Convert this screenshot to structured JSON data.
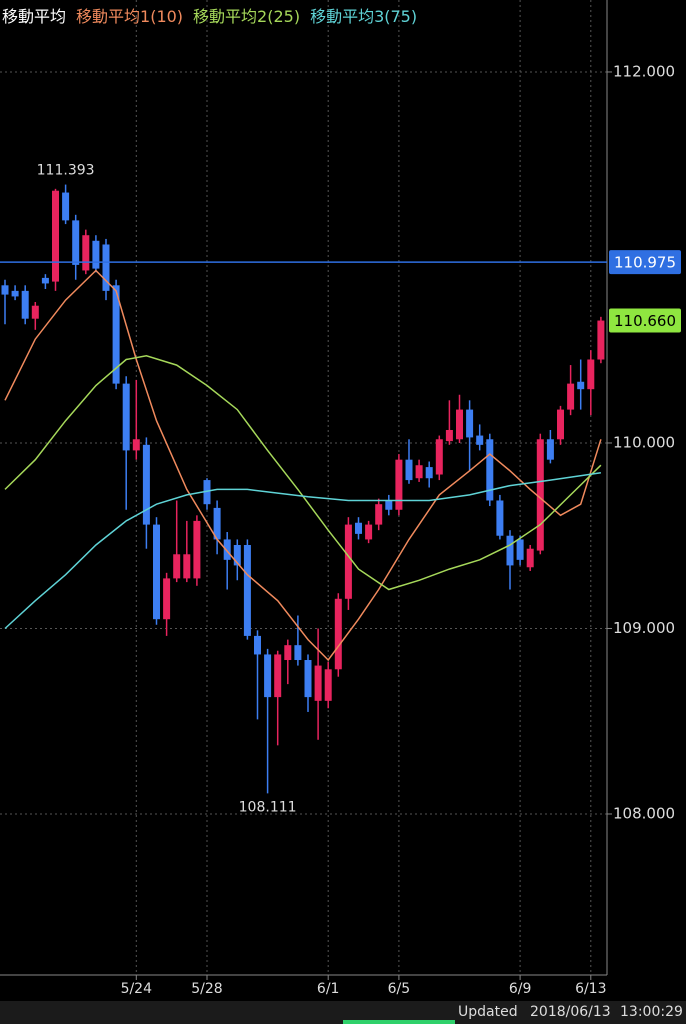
{
  "chart_data": {
    "type": "candlestick",
    "title": "移動平均",
    "categories": [
      null,
      null,
      null,
      null,
      null,
      null,
      null,
      null,
      null,
      null,
      null,
      null,
      null,
      "5/24",
      null,
      null,
      null,
      null,
      null,
      null,
      "5/28",
      null,
      null,
      null,
      null,
      null,
      null,
      null,
      null,
      null,
      null,
      null,
      "6/1",
      null,
      null,
      null,
      null,
      null,
      null,
      "6/5",
      null,
      null,
      null,
      null,
      null,
      null,
      null,
      null,
      null,
      null,
      null,
      "6/9",
      null,
      null,
      null,
      null,
      null,
      null,
      "6/13",
      null
    ],
    "open": [
      110.85,
      110.82,
      110.82,
      110.67,
      110.89,
      110.87,
      111.35,
      111.2,
      110.93,
      111.09,
      111.07,
      110.85,
      110.32,
      109.96,
      109.99,
      109.56,
      109.05,
      109.27,
      109.27,
      109.27,
      109.8,
      109.65,
      109.48,
      109.45,
      109.45,
      108.96,
      108.86,
      108.63,
      108.83,
      108.91,
      108.83,
      108.61,
      108.61,
      108.78,
      109.16,
      109.57,
      109.48,
      109.56,
      109.69,
      109.64,
      109.91,
      109.81,
      109.87,
      109.83,
      110.01,
      110.02,
      110.18,
      110.04,
      110.02,
      109.69,
      109.5,
      109.48,
      109.33,
      109.42,
      110.02,
      110.02,
      110.18,
      110.33,
      110.29,
      110.45
    ],
    "high": [
      110.88,
      110.85,
      110.85,
      110.76,
      110.91,
      111.37,
      111.393,
      111.23,
      111.15,
      111.12,
      111.1,
      110.88,
      110.36,
      110.34,
      110.03,
      109.6,
      109.3,
      109.69,
      109.58,
      109.61,
      109.81,
      109.69,
      109.52,
      109.48,
      109.48,
      108.99,
      108.89,
      108.88,
      108.94,
      109.07,
      108.86,
      109.0,
      108.82,
      109.19,
      109.6,
      109.6,
      109.58,
      109.7,
      109.72,
      109.94,
      110.02,
      109.91,
      109.9,
      110.04,
      110.23,
      110.26,
      110.23,
      110.1,
      110.05,
      109.72,
      109.53,
      109.5,
      109.45,
      110.05,
      110.07,
      110.2,
      110.42,
      110.45,
      110.5,
      110.68
    ],
    "low": [
      110.64,
      110.77,
      110.64,
      110.61,
      110.83,
      110.82,
      111.18,
      110.88,
      110.91,
      110.92,
      110.77,
      110.29,
      109.64,
      109.91,
      109.43,
      109.02,
      108.96,
      109.25,
      109.25,
      109.23,
      109.64,
      109.4,
      109.21,
      109.26,
      108.94,
      108.51,
      108.111,
      108.37,
      108.7,
      108.8,
      108.55,
      108.4,
      108.57,
      108.74,
      109.1,
      109.48,
      109.46,
      109.53,
      109.61,
      109.61,
      109.78,
      109.79,
      109.76,
      109.8,
      109.99,
      110.0,
      109.85,
      109.96,
      109.66,
      109.48,
      109.21,
      109.34,
      109.31,
      109.4,
      109.89,
      109.99,
      110.15,
      110.18,
      110.15,
      110.43
    ],
    "close": [
      110.8,
      110.79,
      110.67,
      110.74,
      110.86,
      111.36,
      111.2,
      110.96,
      111.12,
      110.94,
      110.82,
      110.32,
      109.96,
      110.02,
      109.56,
      109.05,
      109.27,
      109.4,
      109.4,
      109.58,
      109.67,
      109.48,
      109.37,
      109.34,
      108.96,
      108.86,
      108.63,
      108.86,
      108.91,
      108.83,
      108.63,
      108.8,
      108.78,
      109.16,
      109.56,
      109.51,
      109.56,
      109.67,
      109.64,
      109.91,
      109.8,
      109.88,
      109.81,
      110.02,
      110.07,
      110.18,
      110.03,
      109.99,
      109.69,
      109.5,
      109.34,
      109.37,
      109.43,
      110.02,
      109.91,
      110.18,
      110.32,
      110.29,
      110.45,
      110.66
    ],
    "up_color": "#e8245e",
    "down_color": "#3d7ef2",
    "series": [
      {
        "name": "移動平均1(10)",
        "color": "#f08a5d",
        "x": [
          0,
          3,
          6,
          9,
          11,
          13,
          15,
          18,
          21,
          24,
          27,
          30,
          32,
          35,
          37,
          40,
          43,
          46,
          48,
          50,
          52,
          55,
          57,
          59
        ],
        "values": [
          110.23,
          110.56,
          110.77,
          110.93,
          110.82,
          110.45,
          110.12,
          109.75,
          109.48,
          109.29,
          109.15,
          108.94,
          108.83,
          109.05,
          109.21,
          109.48,
          109.72,
          109.85,
          109.94,
          109.85,
          109.75,
          109.61,
          109.67,
          110.02
        ]
      },
      {
        "name": "移動平均2(25)",
        "color": "#a6d85a",
        "x": [
          0,
          3,
          6,
          9,
          12,
          14,
          17,
          20,
          23,
          26,
          29,
          32,
          35,
          38,
          41,
          44,
          47,
          50,
          53,
          56,
          59
        ],
        "values": [
          109.75,
          109.91,
          110.12,
          110.31,
          110.45,
          110.47,
          110.42,
          110.31,
          110.18,
          109.96,
          109.75,
          109.53,
          109.32,
          109.21,
          109.26,
          109.32,
          109.37,
          109.45,
          109.56,
          109.72,
          109.88
        ]
      },
      {
        "name": "移動平均3(75)",
        "color": "#5fd3d6",
        "x": [
          0,
          3,
          6,
          9,
          12,
          15,
          18,
          21,
          24,
          27,
          30,
          34,
          38,
          42,
          46,
          50,
          54,
          59
        ],
        "values": [
          109.0,
          109.15,
          109.29,
          109.45,
          109.58,
          109.67,
          109.72,
          109.75,
          109.75,
          109.73,
          109.71,
          109.69,
          109.69,
          109.69,
          109.72,
          109.77,
          109.8,
          109.84
        ]
      }
    ],
    "ylim": [
      107.132,
      112.388
    ],
    "yticks": [
      {
        "value": 108,
        "label": "108.000"
      },
      {
        "value": 109,
        "label": "109.000"
      },
      {
        "value": 110,
        "label": "110.000"
      },
      {
        "value": 112,
        "label": "112.000"
      }
    ],
    "grid": true,
    "annotations": [
      {
        "value": 111.393,
        "x": 6,
        "position": "above"
      },
      {
        "value": 108.111,
        "x": 26,
        "position": "below"
      }
    ],
    "price_marks": [
      {
        "value": 110.975,
        "color": "#2f6fe2",
        "text_color": "#ffffff",
        "line": true
      },
      {
        "value": 110.66,
        "label": "110.660",
        "color": "#8fe640",
        "text_color": "#000000",
        "line": false
      }
    ]
  },
  "footer": {
    "status": "Updated",
    "date": "2018/06/13",
    "time": "13:00:29"
  }
}
